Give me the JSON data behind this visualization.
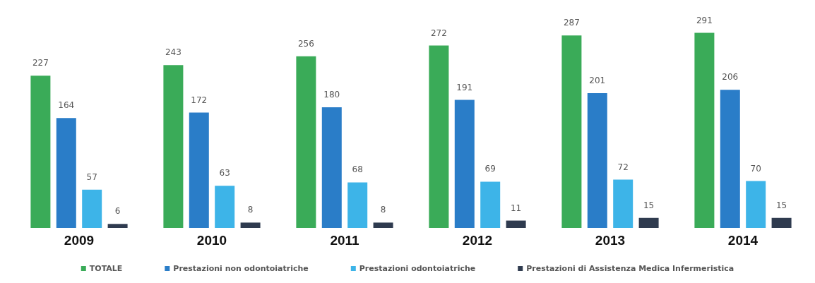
{
  "chart_data": {
    "type": "bar",
    "categories": [
      "2009",
      "2010",
      "2011",
      "2012",
      "2013",
      "2014"
    ],
    "series": [
      {
        "name": "TOTALE",
        "color": "#3aab58",
        "values": [
          227,
          243,
          256,
          272,
          287,
          291
        ]
      },
      {
        "name": "Prestazioni non odontoiatriche",
        "color": "#2a7dc8",
        "values": [
          164,
          172,
          180,
          191,
          201,
          206
        ]
      },
      {
        "name": "Prestazioni odontoiatriche",
        "color": "#3db4e8",
        "values": [
          57,
          63,
          68,
          69,
          72,
          70
        ]
      },
      {
        "name": "Prestazioni di Assistenza Medica Infermeristica",
        "color": "#2f3b4f",
        "values": [
          6,
          8,
          8,
          11,
          15,
          15
        ]
      }
    ],
    "data_labels": true,
    "legend": "bottom",
    "grid": false
  }
}
